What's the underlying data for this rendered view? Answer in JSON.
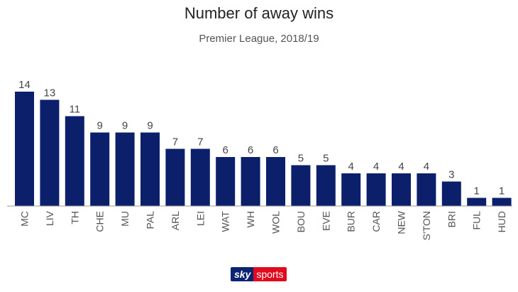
{
  "chart_data": {
    "type": "bar",
    "title": "Number of away wins",
    "subtitle": "Premier League, 2018/19",
    "categories": [
      "MC",
      "LIV",
      "TH",
      "CHE",
      "MU",
      "PAL",
      "ARL",
      "LEI",
      "WAT",
      "WH",
      "WOL",
      "BOU",
      "EVE",
      "BUR",
      "CAR",
      "NEW",
      "S'TON",
      "BRI",
      "FUL",
      "HUD"
    ],
    "values": [
      14,
      13,
      11,
      9,
      9,
      9,
      7,
      7,
      6,
      6,
      6,
      5,
      5,
      4,
      4,
      4,
      4,
      3,
      1,
      1
    ],
    "ylim": [
      0,
      14
    ],
    "bar_color": "#0b1f6b",
    "grid": false,
    "xlabel": "",
    "ylabel": ""
  },
  "brand": {
    "part1": "sky",
    "part2": "sports",
    "colors": {
      "sky": "#0a2472",
      "sports": "#e10a1e"
    }
  }
}
